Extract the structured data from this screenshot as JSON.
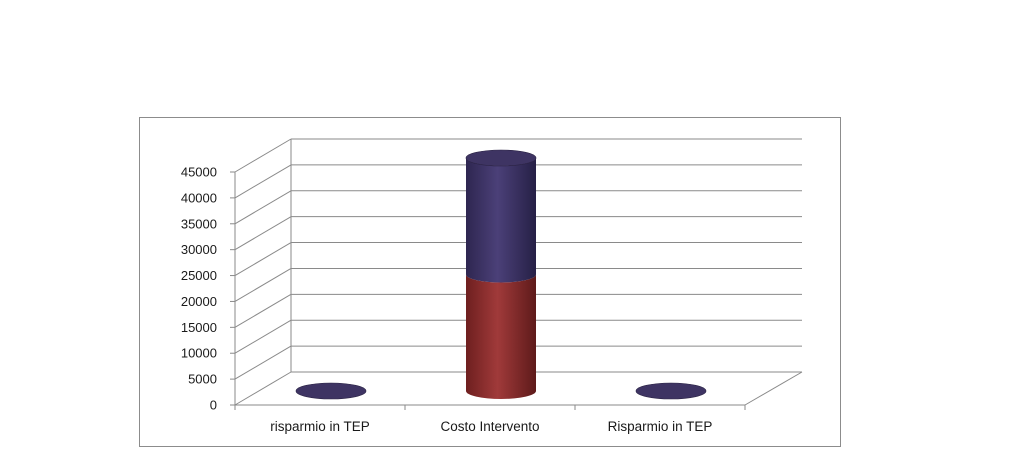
{
  "chart_data": {
    "type": "bar",
    "subtype": "3d-cylinder-stacked",
    "title": "",
    "xlabel": "",
    "ylabel": "",
    "categories": [
      "risparmio in TEP",
      "Costo Intervento",
      "Risparmio in TEP"
    ],
    "series": [
      {
        "values": [
          0,
          22500,
          0
        ],
        "color": "#8e2e2e"
      },
      {
        "values": [
          0,
          22500,
          0
        ],
        "color": "#3e3463"
      }
    ],
    "ylim": [
      0,
      45000
    ],
    "yticks": [
      0,
      5000,
      10000,
      15000,
      20000,
      25000,
      30000,
      35000,
      40000,
      45000
    ],
    "ytick_labels": [
      "0",
      "5000",
      "10000",
      "15000",
      "20000",
      "25000",
      "30000",
      "35000",
      "40000",
      "45000"
    ],
    "grid": true,
    "legend": "none"
  }
}
